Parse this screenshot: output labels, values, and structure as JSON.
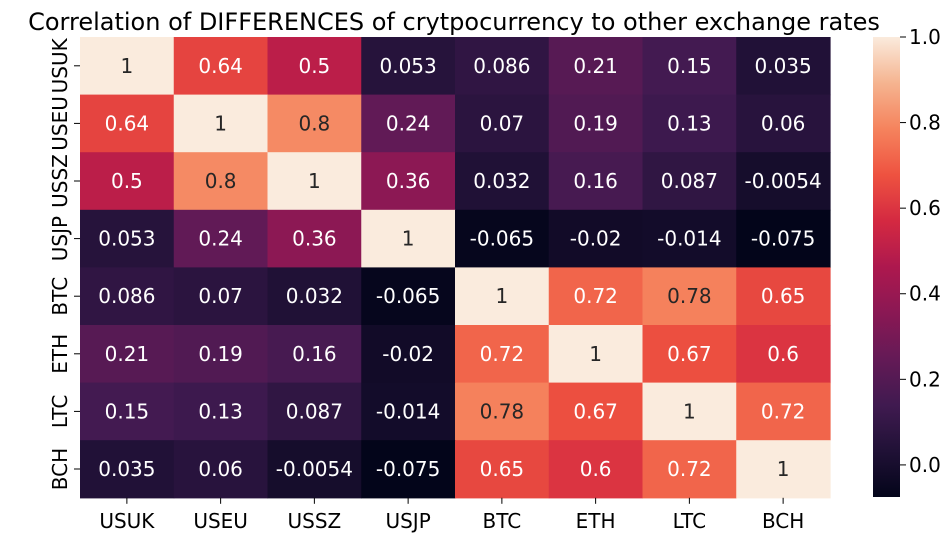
{
  "chart_data": {
    "type": "heatmap",
    "title": "Correlation of DIFFERENCES of crytpocurrency to other exchange rates",
    "xlabel": "",
    "ylabel": "",
    "x_categories": [
      "USUK",
      "USEU",
      "USSZ",
      "USJP",
      "BTC",
      "ETH",
      "LTC",
      "BCH"
    ],
    "y_categories": [
      "USUK",
      "USEU",
      "USSZ",
      "USJP",
      "BTC",
      "ETH",
      "LTC",
      "BCH"
    ],
    "values": [
      [
        1,
        0.64,
        0.5,
        0.053,
        0.086,
        0.21,
        0.15,
        0.035
      ],
      [
        0.64,
        1,
        0.8,
        0.24,
        0.07,
        0.19,
        0.13,
        0.06
      ],
      [
        0.5,
        0.8,
        1,
        0.36,
        0.032,
        0.16,
        0.087,
        -0.0054
      ],
      [
        0.053,
        0.24,
        0.36,
        1,
        -0.065,
        -0.02,
        -0.014,
        -0.075
      ],
      [
        0.086,
        0.07,
        0.032,
        -0.065,
        1,
        0.72,
        0.78,
        0.65
      ],
      [
        0.21,
        0.19,
        0.16,
        -0.02,
        0.72,
        1,
        0.67,
        0.6
      ],
      [
        0.15,
        0.13,
        0.087,
        -0.014,
        0.78,
        0.67,
        1,
        0.72
      ],
      [
        0.035,
        0.06,
        -0.0054,
        -0.075,
        0.65,
        0.6,
        0.72,
        1
      ]
    ],
    "annotations": [
      [
        "1",
        "0.64",
        "0.5",
        "0.053",
        "0.086",
        "0.21",
        "0.15",
        "0.035"
      ],
      [
        "0.64",
        "1",
        "0.8",
        "0.24",
        "0.07",
        "0.19",
        "0.13",
        "0.06"
      ],
      [
        "0.5",
        "0.8",
        "1",
        "0.36",
        "0.032",
        "0.16",
        "0.087",
        "-0.0054"
      ],
      [
        "0.053",
        "0.24",
        "0.36",
        "1",
        "-0.065",
        "-0.02",
        "-0.014",
        "-0.075"
      ],
      [
        "0.086",
        "0.07",
        "0.032",
        "-0.065",
        "1",
        "0.72",
        "0.78",
        "0.65"
      ],
      [
        "0.21",
        "0.19",
        "0.16",
        "-0.02",
        "0.72",
        "1",
        "0.67",
        "0.6"
      ],
      [
        "0.15",
        "0.13",
        "0.087",
        "-0.014",
        "0.78",
        "0.67",
        "1",
        "0.72"
      ],
      [
        "0.035",
        "0.06",
        "-0.0054",
        "-0.075",
        "0.65",
        "0.6",
        "0.72",
        "1"
      ]
    ],
    "vmin": -0.075,
    "vmax": 1.0,
    "colormap": "rocket",
    "colorbar_ticks": [
      0.0,
      0.2,
      0.4,
      0.6,
      0.8,
      1.0
    ],
    "colorbar_tick_labels": [
      "0.0",
      "0.2",
      "0.4",
      "0.6",
      "0.8",
      "1.0"
    ],
    "grid": false
  }
}
